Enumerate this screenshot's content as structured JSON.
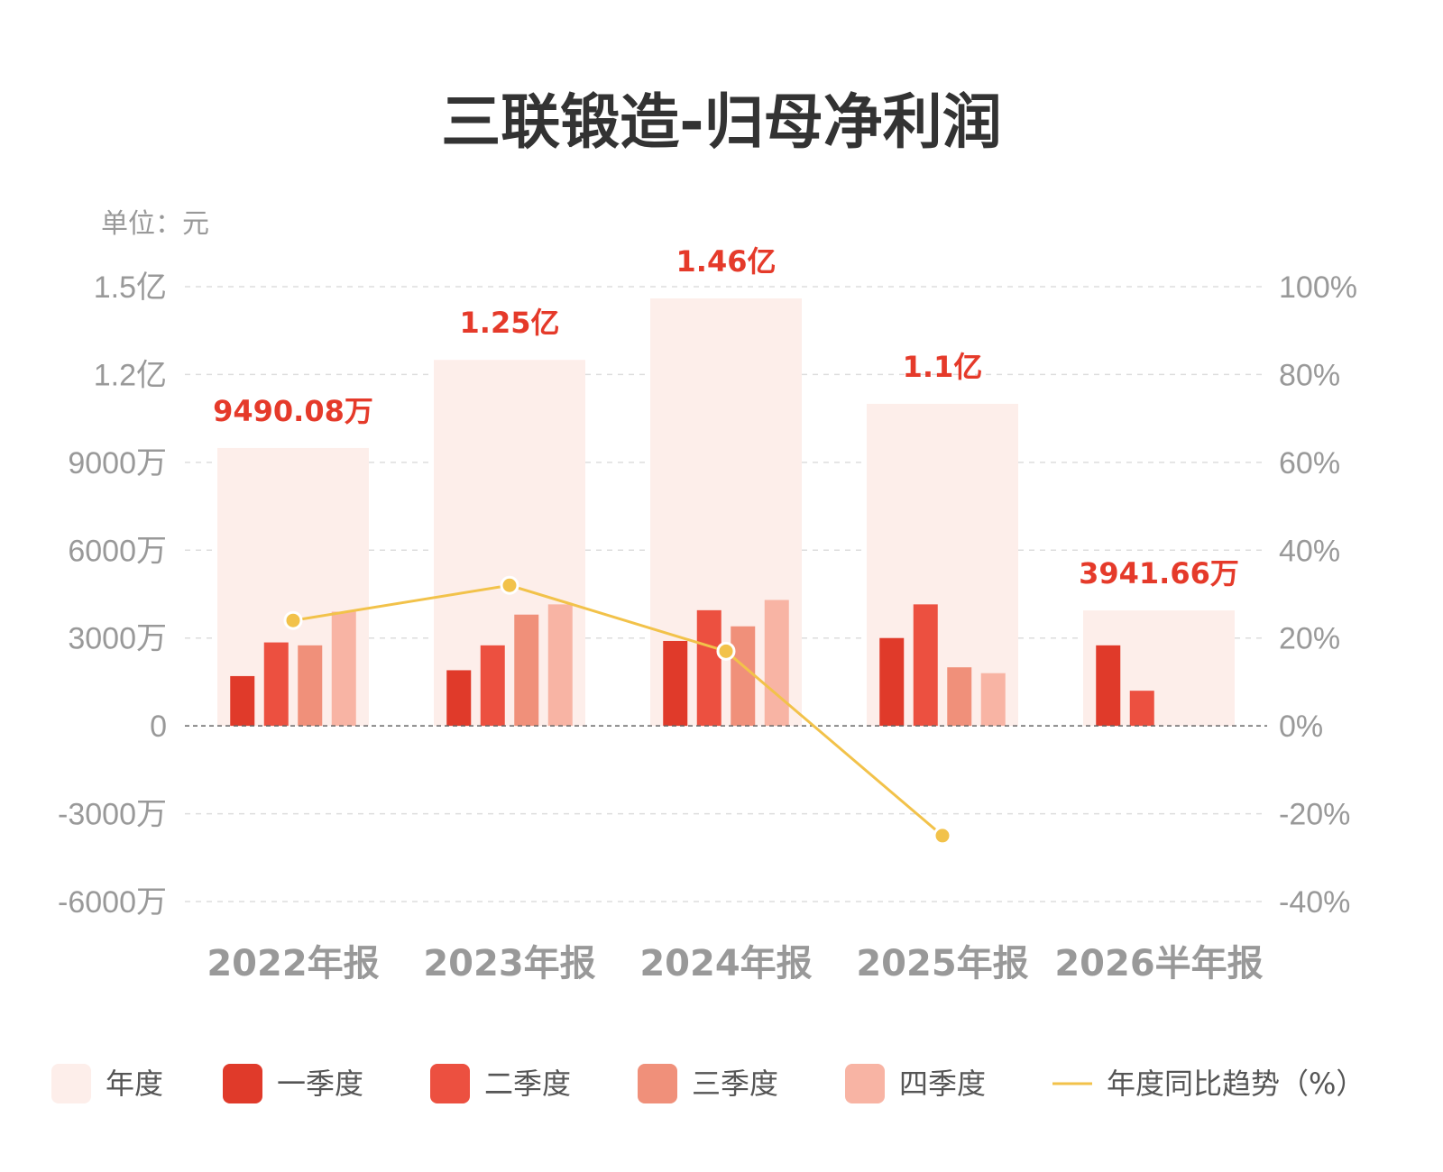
{
  "chart_data": {
    "type": "bar",
    "title": "三联锻造-归母净利润",
    "unit_label": "单位：元",
    "categories": [
      "2022年报",
      "2023年报",
      "2024年报",
      "2025年报",
      "2026半年报"
    ],
    "annual": {
      "name": "年度",
      "values": [
        94900800,
        125000000,
        146000000,
        110000000,
        39416600
      ],
      "labels": [
        "9490.08万",
        "1.25亿",
        "1.46亿",
        "1.1亿",
        "3941.66万"
      ]
    },
    "series": [
      {
        "name": "一季度",
        "values": [
          17000000,
          19000000,
          29000000,
          30000000,
          27500000
        ]
      },
      {
        "name": "二季度",
        "values": [
          28500000,
          27500000,
          39500000,
          41500000,
          12000000
        ]
      },
      {
        "name": "三季度",
        "values": [
          27500000,
          38000000,
          34000000,
          20000000,
          null
        ]
      },
      {
        "name": "四季度",
        "values": [
          39000000,
          41500000,
          43000000,
          18000000,
          null
        ]
      }
    ],
    "trend": {
      "name": "年度同比趋势（%）",
      "values": [
        24,
        32,
        17,
        -25,
        null
      ]
    },
    "y_left": {
      "ylim": [
        -60000000,
        150000000
      ],
      "ticks": [
        150000000,
        120000000,
        90000000,
        60000000,
        30000000,
        0,
        -30000000,
        -60000000
      ],
      "tick_labels": [
        "1.5亿",
        "1.2亿",
        "9000万",
        "6000万",
        "3000万",
        "0",
        "-3000万",
        "-6000万"
      ]
    },
    "y_right": {
      "ylim": [
        -40,
        100
      ],
      "ticks": [
        100,
        80,
        60,
        40,
        20,
        0,
        -20,
        -40
      ],
      "tick_labels": [
        "100%",
        "80%",
        "60%",
        "40%",
        "20%",
        "0%",
        "-20%",
        "-40%"
      ]
    },
    "grid": true,
    "legend_position": "bottom",
    "colors": {
      "annual": "#fdeeea",
      "q1": "#e03a2a",
      "q2": "#ec5040",
      "q3": "#f0907a",
      "q4": "#f8b4a4",
      "trend": "#f2c24a",
      "annual_label": "#e53a2a",
      "grid": "#dddddd",
      "zero_line": "#666666"
    }
  }
}
